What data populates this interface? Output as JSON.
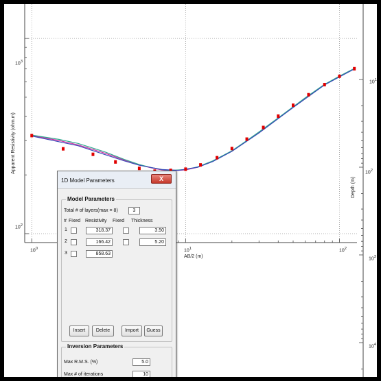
{
  "chart_data": {
    "type": "line",
    "xlabel": "AB/2 (m)",
    "ylabel": "Apparent Resistivity (ohm.m)",
    "y2label": "Depth (m)",
    "x_scale": "log",
    "y_scale": "log",
    "xlim": [
      0.9,
      130
    ],
    "ylim": [
      90,
      1500
    ],
    "x_ticks": [
      "10",
      "10",
      "10"
    ],
    "x_tick_exps": [
      "0",
      "1",
      "2"
    ],
    "y_ticks": [
      "10",
      "10"
    ],
    "y_tick_exps": [
      "3",
      "2"
    ],
    "depth_ticks": [
      "10",
      "10",
      "10",
      "10"
    ],
    "depth_tick_exps": [
      "1",
      "2",
      "3",
      "4"
    ],
    "grid": true,
    "observed": {
      "x": [
        1.0,
        1.6,
        2.5,
        3.5,
        5.0,
        6.3,
        8.0,
        10.0,
        12.5,
        16.0,
        20.0,
        25.0,
        32.0,
        40.0,
        50.0,
        63.0,
        80.0,
        100.0,
        125.0
      ],
      "y": [
        318,
        272,
        255,
        233,
        216,
        209,
        211,
        214,
        225,
        245,
        273,
        305,
        350,
        400,
        455,
        515,
        580,
        640,
        700
      ]
    },
    "series": [
      {
        "x": [
          1.0,
          1.5,
          2.0,
          3.0,
          4.0,
          5.0,
          6.0,
          7.0,
          8.0,
          10.0,
          12.0,
          15.0,
          20.0,
          25.0,
          30.0,
          40.0,
          50.0,
          60.0,
          80.0,
          100.0,
          125.0
        ],
        "y": [
          318,
          300,
          285,
          258,
          238,
          225,
          217,
          212,
          210,
          212,
          219,
          235,
          265,
          298,
          330,
          390,
          445,
          495,
          580,
          640,
          700
        ],
        "color": "#cc2fa0"
      },
      {
        "x": [
          1.0,
          1.5,
          2.0,
          3.0,
          4.0,
          5.0,
          6.0,
          7.0,
          8.0,
          10.0,
          12.0,
          15.0,
          20.0,
          25.0,
          30.0,
          40.0,
          50.0,
          60.0,
          80.0,
          100.0,
          125.0
        ],
        "y": [
          320,
          304,
          290,
          262,
          240,
          226,
          218,
          213,
          211,
          213,
          220,
          236,
          266,
          300,
          332,
          392,
          447,
          497,
          582,
          642,
          702
        ],
        "color": "#2fa88f"
      },
      {
        "x": [
          1.0,
          2.0,
          3.0,
          4.0,
          5.0,
          7.0,
          9.0,
          12.0,
          15.0,
          20.0,
          30.0,
          50.0,
          80.0,
          125.0
        ],
        "y": [
          316,
          282,
          254,
          236,
          224,
          213,
          211,
          219,
          234,
          264,
          328,
          443,
          578,
          698
        ],
        "color": "#3a4ab8"
      }
    ]
  },
  "dialog": {
    "title": "1D Model Parameters",
    "close_label": "X",
    "model_group_title": "Model Parameters",
    "total_layers_label": "Total # of layers(max = 8)",
    "total_layers_value": "3",
    "col_num": "#",
    "col_fixed1": "Fixed",
    "col_resistivity": "Resistivity",
    "col_fixed2": "Fixed",
    "col_thickness": "Thickness",
    "rows": [
      {
        "num": "1",
        "resistivity": "318.37",
        "thickness": "3.50"
      },
      {
        "num": "2",
        "resistivity": "166.42",
        "thickness": "5.20"
      },
      {
        "num": "3",
        "resistivity": "858.63",
        "thickness": ""
      }
    ],
    "insert_label": "Insert",
    "delete_label": "Delete",
    "import_label": "Import",
    "guess_label": "Guess",
    "inversion_group_title": "Inversion Parameters",
    "max_rms_label": "Max R.M.S. (%)",
    "max_rms_value": "5.0",
    "max_iter_label": "Max # of iterations",
    "max_iter_value": "10"
  }
}
